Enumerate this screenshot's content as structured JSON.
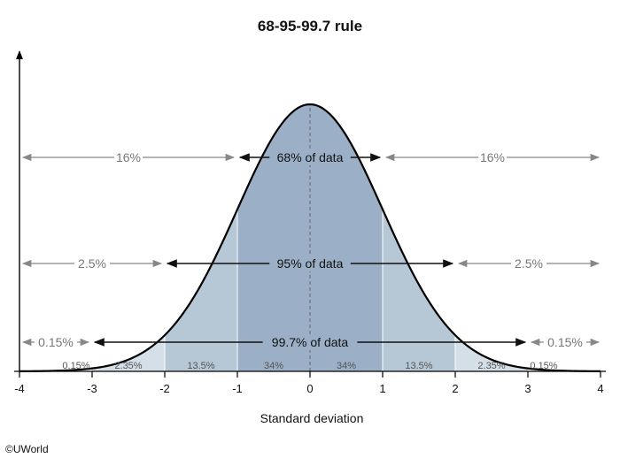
{
  "chart_data": {
    "type": "area",
    "title": "68-95-99.7 rule",
    "xlabel": "Standard deviation",
    "ylabel": "",
    "xlim": [
      -4,
      4
    ],
    "xticks": [
      "-4",
      "-3",
      "-2",
      "-1",
      "0",
      "1",
      "2",
      "3",
      "4"
    ],
    "bands": [
      {
        "from": -3,
        "to": -2,
        "label": "2.35%"
      },
      {
        "from": -2,
        "to": -1,
        "label": "13.5%"
      },
      {
        "from": -1,
        "to": 0,
        "label": "34%"
      },
      {
        "from": 0,
        "to": 1,
        "label": "34%"
      },
      {
        "from": 1,
        "to": 2,
        "label": "13.5%"
      },
      {
        "from": 2,
        "to": 3,
        "label": "2.35%"
      }
    ],
    "tails": [
      {
        "from": -4,
        "to": -3,
        "label": "0.15%"
      },
      {
        "from": 3,
        "to": 4,
        "label": "0.15%"
      }
    ],
    "inner_arrows": [
      {
        "from": -1,
        "to": 1,
        "label": "68% of data"
      },
      {
        "from": -2,
        "to": 2,
        "label": "95% of data"
      },
      {
        "from": -3,
        "to": 3,
        "label": "99.7% of data"
      }
    ],
    "outer_arrows": [
      {
        "left": "16%",
        "right": "16%",
        "boundary": 1
      },
      {
        "left": "2.5%",
        "right": "2.5%",
        "boundary": 2
      },
      {
        "left": "0.15%",
        "right": "0.15%",
        "boundary": 3
      }
    ],
    "colors": {
      "band_1sd": "#9bb0c6",
      "band_2sd": "#b6c7d6",
      "band_3sd": "#d5dfe8",
      "curve": "#000000",
      "arrow_dark": "#111111",
      "arrow_gray": "#888888"
    }
  },
  "credit": "©UWorld"
}
